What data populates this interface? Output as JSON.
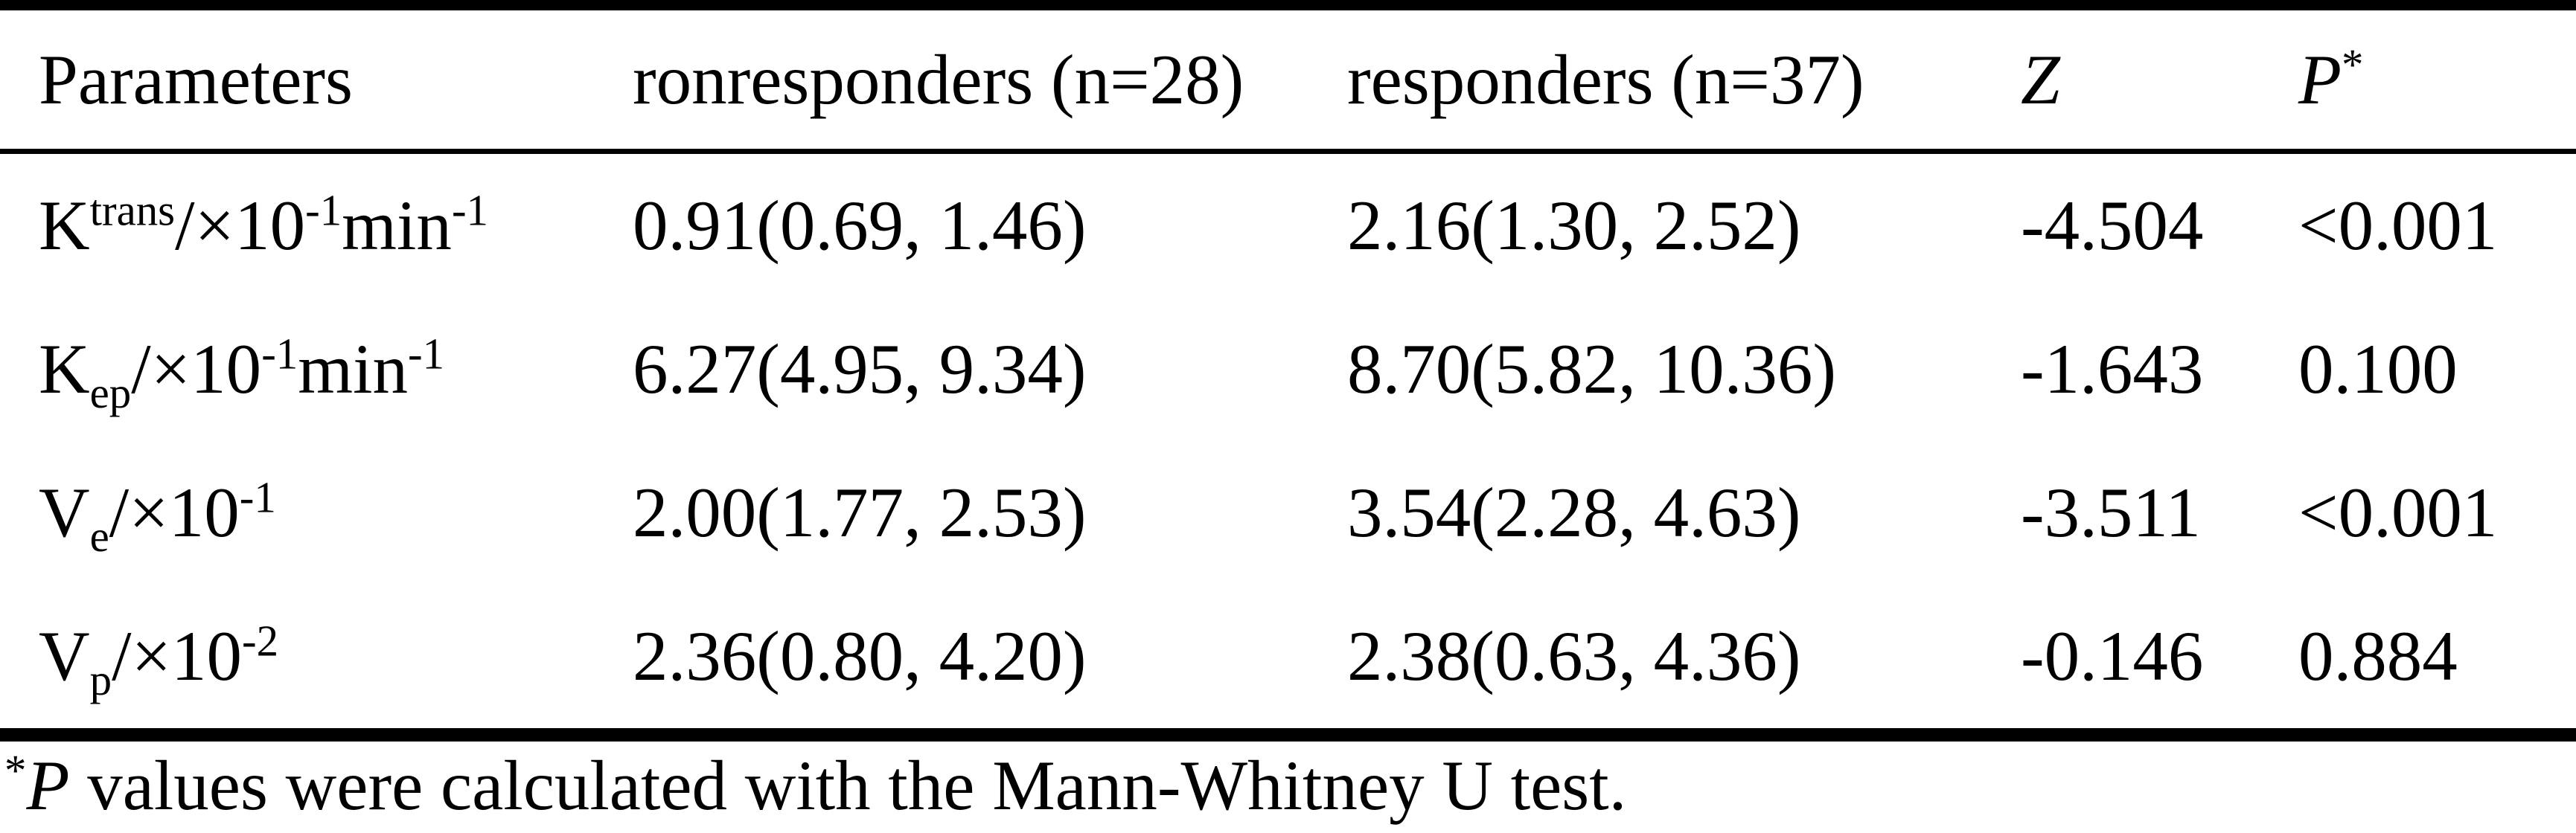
{
  "table": {
    "title_hint": "Comparison of parameters between nonresponders and responders",
    "headers": {
      "parameters": "Parameters",
      "nonresponders": "ronresponders (n=28)",
      "responders": "responders (n=37)",
      "z": "Z",
      "p": "P",
      "p_sup": "*"
    },
    "rows": [
      {
        "param": {
          "base": "K",
          "script": "trans",
          "mid": "/×10",
          "exp1": "-1",
          "unit": "min",
          "exp2": "-1"
        },
        "nonresponders": "0.91(0.69, 1.46)",
        "responders": "2.16(1.30, 2.52)",
        "z": "-4.504",
        "p": "<0.001"
      },
      {
        "param": {
          "base": "K",
          "script": "ep",
          "mid": "/×10",
          "exp1": "-1",
          "unit": "min",
          "exp2": "-1"
        },
        "nonresponders": "6.27(4.95, 9.34)",
        "responders": "8.70(5.82, 10.36)",
        "z": "-1.643",
        "p": "0.100"
      },
      {
        "param": {
          "base": "V",
          "script": "e",
          "mid": "/×10",
          "exp1": "-1"
        },
        "nonresponders": "2.00(1.77, 2.53)",
        "responders": "3.54(2.28, 4.63)",
        "z": "-3.511",
        "p": "<0.001"
      },
      {
        "param": {
          "base": "V",
          "script": "p",
          "mid": "/×10",
          "exp1": "-2"
        },
        "nonresponders": "2.36(0.80, 4.20)",
        "responders": "2.38(0.63, 4.36)",
        "z": "-0.146",
        "p": "0.884"
      }
    ]
  },
  "footnote": {
    "star": "*",
    "p": "P",
    "text": " values were calculated with the Mann-Whitney U test."
  }
}
